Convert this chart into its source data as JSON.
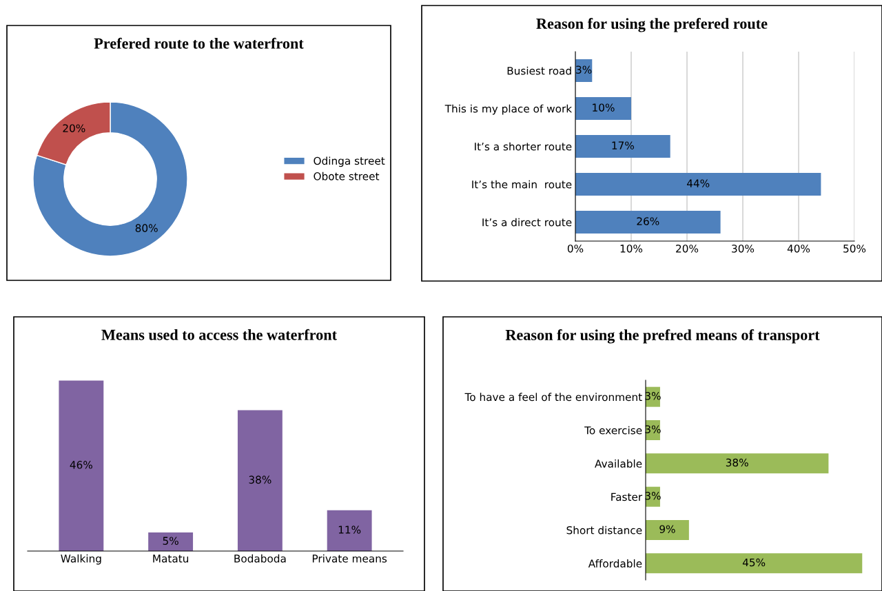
{
  "chart_data": [
    {
      "type": "donut",
      "title": "Prefered route to the waterfront",
      "categories": [
        "Odinga street",
        "Obote street"
      ],
      "values": [
        80,
        20
      ],
      "colors": [
        "#4f81bd",
        "#c0504d"
      ],
      "value_labels": [
        "80%",
        "20%"
      ],
      "legend": "right"
    },
    {
      "type": "bar",
      "orientation": "horizontal",
      "title": "Reason for using the prefered route",
      "categories": [
        "Busiest road",
        "This is my place of work",
        "It’s a shorter route",
        "It’s the main  route",
        "It’s a direct route"
      ],
      "values": [
        3,
        10,
        17,
        44,
        26
      ],
      "color": "#4f81bd",
      "value_labels": [
        "3%",
        "10%",
        "17%",
        "44%",
        "26%"
      ],
      "xlim": [
        0,
        50
      ],
      "xticks": [
        {
          "value": 0,
          "label": "0%"
        },
        {
          "value": 10,
          "label": "10%"
        },
        {
          "value": 20,
          "label": "20%"
        },
        {
          "value": 30,
          "label": "30%"
        },
        {
          "value": 40,
          "label": "40%"
        },
        {
          "value": 50,
          "label": "50%"
        }
      ],
      "grid": "x"
    },
    {
      "type": "bar",
      "title": "Means used to access the waterfront",
      "categories": [
        "Walking",
        "Matatu",
        "Bodaboda",
        "Private means"
      ],
      "values": [
        46,
        5,
        38,
        11
      ],
      "color": "#8064a2",
      "value_labels": [
        "46%",
        "5%",
        "38%",
        "11%"
      ],
      "tick_labels": "x"
    },
    {
      "type": "bar",
      "orientation": "horizontal",
      "title": "Reason for using the prefred means of transport",
      "categories": [
        "To have a feel of the environment",
        "To exercise",
        "Available",
        "Faster",
        "Short distance",
        "Affordable"
      ],
      "values": [
        3,
        3,
        38,
        3,
        9,
        45
      ],
      "color": "#9bbb59",
      "value_labels": [
        "3%",
        "3%",
        "38%",
        "3%",
        "9%",
        "45%"
      ],
      "tick_labels": "y"
    }
  ]
}
